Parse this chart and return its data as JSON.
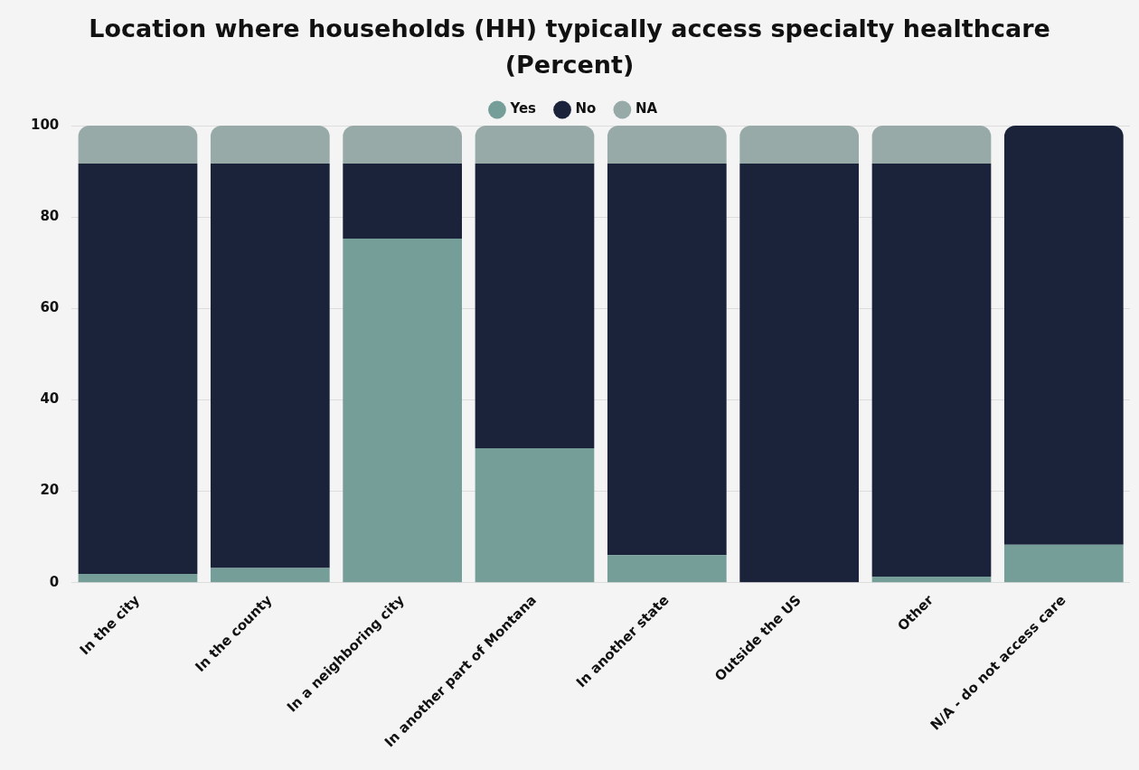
{
  "chart_data": {
    "type": "bar",
    "title": "Location where households (HH) typically access specialty healthcare (Percent)",
    "stacked": true,
    "categories": [
      "In the city",
      "In the county",
      "In a neighboring city",
      "In another part of Montana",
      "In another state",
      "Outside the US",
      "Other",
      "N/A - do not access care"
    ],
    "series": [
      {
        "name": "Yes",
        "color": "#769e99",
        "values": [
          1.9,
          3.2,
          75.3,
          29.4,
          6.0,
          0,
          1.3,
          8.3
        ]
      },
      {
        "name": "No",
        "color": "#1a233a",
        "values": [
          89.8,
          88.5,
          16.4,
          62.3,
          85.7,
          91.7,
          90.4,
          91.7
        ]
      },
      {
        "name": "NA",
        "color": "#97aaa8",
        "values": [
          8.3,
          8.3,
          8.3,
          8.3,
          8.3,
          8.3,
          8.3,
          0
        ]
      }
    ],
    "ylim": [
      0,
      100
    ],
    "yticks": [
      0,
      20,
      40,
      60,
      80,
      100
    ],
    "grid": "y",
    "legend": "top"
  }
}
